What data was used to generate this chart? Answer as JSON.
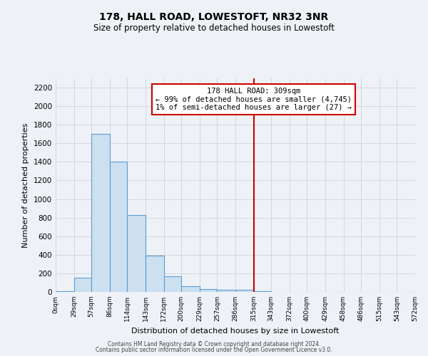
{
  "title": "178, HALL ROAD, LOWESTOFT, NR32 3NR",
  "subtitle": "Size of property relative to detached houses in Lowestoft",
  "xlabel": "Distribution of detached houses by size in Lowestoft",
  "ylabel": "Number of detached properties",
  "bin_edges": [
    0,
    29,
    57,
    86,
    114,
    143,
    172,
    200,
    229,
    257,
    286,
    315,
    343,
    372,
    400,
    429,
    458,
    486,
    515,
    543,
    572
  ],
  "bar_heights": [
    10,
    155,
    1700,
    1400,
    830,
    390,
    165,
    65,
    30,
    25,
    25,
    5,
    0,
    0,
    0,
    0,
    0,
    0,
    0,
    0
  ],
  "bar_color": "#cce0f0",
  "bar_edge_color": "#5b9bd5",
  "vline_x": 315,
  "vline_color": "#cc0000",
  "ylim": [
    0,
    2300
  ],
  "yticks": [
    0,
    200,
    400,
    600,
    800,
    1000,
    1200,
    1400,
    1600,
    1800,
    2000,
    2200
  ],
  "annotation_title": "178 HALL ROAD: 309sqm",
  "annotation_line1": "← 99% of detached houses are smaller (4,745)",
  "annotation_line2": "1% of semi-detached houses are larger (27) →",
  "annotation_box_color": "#ffffff",
  "annotation_box_edge": "#cc0000",
  "grid_color": "#cccccc",
  "background_color": "#eef2f7",
  "footer1": "Contains HM Land Registry data © Crown copyright and database right 2024.",
  "footer2": "Contains public sector information licensed under the Open Government Licence v3.0."
}
